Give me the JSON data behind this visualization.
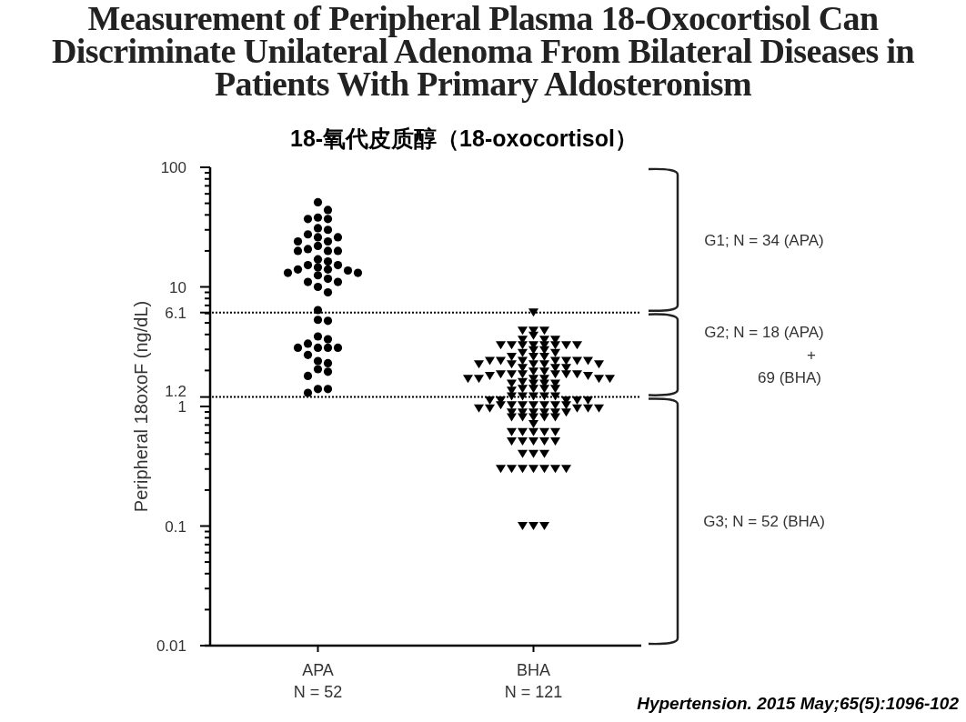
{
  "chart_data": {
    "type": "scatter",
    "title": "Measurement of Peripheral Plasma 18-Oxocortisol Can Discriminate Unilateral Adenoma From Bilateral Diseases in Patients With Primary Aldosteronism",
    "subtitle": "18-氧代皮质醇（18-oxocortisol）",
    "ylabel": "Peripheral 18oxoF (ng/dL)",
    "categories": [
      "APA",
      "BHA"
    ],
    "log": "y",
    "ylim": [
      0.01,
      100
    ],
    "yticks": [
      0.01,
      0.1,
      1,
      1.2,
      6.1,
      10,
      100
    ],
    "series": [
      {
        "color": "#000000",
        "marker": "circle",
        "x": [
          "APA",
          "APA",
          "APA",
          "APA",
          "APA",
          "APA",
          "APA",
          "APA",
          "APA",
          "APA",
          "APA",
          "APA",
          "APA",
          "APA",
          "APA",
          "APA",
          "APA",
          "APA",
          "APA",
          "APA",
          "APA",
          "APA",
          "APA",
          "APA",
          "APA",
          "APA",
          "APA",
          "APA",
          "APA",
          "APA",
          "APA",
          "APA",
          "APA",
          "APA",
          "APA",
          "APA",
          "APA",
          "APA",
          "APA",
          "APA",
          "APA",
          "APA",
          "APA",
          "APA",
          "APA",
          "APA",
          "APA",
          "APA",
          "APA",
          "APA",
          "APA",
          "APA"
        ],
        "values": [
          51,
          44,
          38,
          37,
          37,
          31,
          30,
          27.5,
          26,
          26,
          24,
          24,
          22,
          20.7,
          20,
          20,
          20,
          17,
          16.3,
          15.2,
          15.2,
          14.6,
          14,
          14,
          13.7,
          13.1,
          13.1,
          12.5,
          11.7,
          11,
          11,
          10,
          9,
          6.4,
          5.3,
          5.2,
          3.85,
          3.65,
          3.35,
          3.1,
          3.1,
          3.1,
          3.1,
          2.7,
          2.4,
          2.3,
          2.05,
          1.95,
          1.8,
          1.4,
          1.4,
          1.3
        ]
      },
      {
        "color": "#000000",
        "marker": "triangle",
        "x": [
          "BHA",
          "BHA",
          "BHA",
          "BHA",
          "BHA",
          "BHA",
          "BHA",
          "BHA",
          "BHA",
          "BHA",
          "BHA",
          "BHA",
          "BHA",
          "BHA",
          "BHA",
          "BHA",
          "BHA",
          "BHA",
          "BHA",
          "BHA",
          "BHA",
          "BHA",
          "BHA",
          "BHA",
          "BHA",
          "BHA",
          "BHA",
          "BHA",
          "BHA",
          "BHA",
          "BHA",
          "BHA",
          "BHA",
          "BHA",
          "BHA",
          "BHA",
          "BHA",
          "BHA",
          "BHA",
          "BHA",
          "BHA",
          "BHA",
          "BHA",
          "BHA",
          "BHA",
          "BHA",
          "BHA",
          "BHA",
          "BHA",
          "BHA",
          "BHA",
          "BHA",
          "BHA",
          "BHA",
          "BHA",
          "BHA",
          "BHA",
          "BHA",
          "BHA",
          "BHA",
          "BHA",
          "BHA",
          "BHA",
          "BHA",
          "BHA",
          "BHA",
          "BHA",
          "BHA",
          "BHA",
          "BHA",
          "BHA",
          "BHA",
          "BHA",
          "BHA",
          "BHA",
          "BHA",
          "BHA",
          "BHA",
          "BHA",
          "BHA",
          "BHA",
          "BHA",
          "BHA",
          "BHA",
          "BHA",
          "BHA",
          "BHA",
          "BHA",
          "BHA",
          "BHA",
          "BHA",
          "BHA",
          "BHA",
          "BHA",
          "BHA",
          "BHA",
          "BHA",
          "BHA",
          "BHA",
          "BHA",
          "BHA",
          "BHA",
          "BHA",
          "BHA",
          "BHA",
          "BHA",
          "BHA",
          "BHA",
          "BHA",
          "BHA",
          "BHA",
          "BHA",
          "BHA",
          "BHA",
          "BHA",
          "BHA",
          "BHA",
          "BHA",
          "BHA",
          "BHA",
          "BHA"
        ],
        "values": [
          6.1,
          4.3,
          4.3,
          4.3,
          3.9,
          3.6,
          3.6,
          3.6,
          3.25,
          3.25,
          3.25,
          3.25,
          3.25,
          3.25,
          3.25,
          3.25,
          2.95,
          2.95,
          2.8,
          2.8,
          2.6,
          2.6,
          2.6,
          2.4,
          2.4,
          2.4,
          2.4,
          2.4,
          2.4,
          2.4,
          2.25,
          2.25,
          2.25,
          2.25,
          2.25,
          2.1,
          2.1,
          2.1,
          1.95,
          1.95,
          1.85,
          1.85,
          1.85,
          1.85,
          1.85,
          1.85,
          1.8,
          1.8,
          1.7,
          1.7,
          1.7,
          1.7,
          1.7,
          1.7,
          1.6,
          1.55,
          1.55,
          1.55,
          1.55,
          1.4,
          1.4,
          1.4,
          1.4,
          1.35,
          1.21,
          1.21,
          1.21,
          1.21,
          1.21,
          1.12,
          1.12,
          1.12,
          1.12,
          1.12,
          1.02,
          1.02,
          1.02,
          1.02,
          1.02,
          1.02,
          1.02,
          0.96,
          0.96,
          0.96,
          0.96,
          0.96,
          0.89,
          0.89,
          0.89,
          0.89,
          0.89,
          0.89,
          0.81,
          0.81,
          0.81,
          0.81,
          0.81,
          0.71,
          0.61,
          0.61,
          0.61,
          0.61,
          0.61,
          0.51,
          0.51,
          0.51,
          0.51,
          0.51,
          0.4,
          0.4,
          0.4,
          0.3,
          0.3,
          0.3,
          0.3,
          0.3,
          0.3,
          0.3,
          0.1,
          0.1,
          0.1
        ]
      }
    ],
    "ref_lines": [
      {
        "axis": "y",
        "value": 6.1,
        "line_style": "dotted"
      },
      {
        "axis": "y",
        "value": 1.2,
        "line_style": "dotted"
      }
    ],
    "annotations": [
      "G1; N = 34 (APA)",
      "G2; N = 18 (APA)\n+\n69 (BHA)",
      "G3; N = 52 (BHA)",
      "N = 52",
      "N = 121",
      "Hypertension. 2015 May;65(5):1096-102"
    ]
  }
}
